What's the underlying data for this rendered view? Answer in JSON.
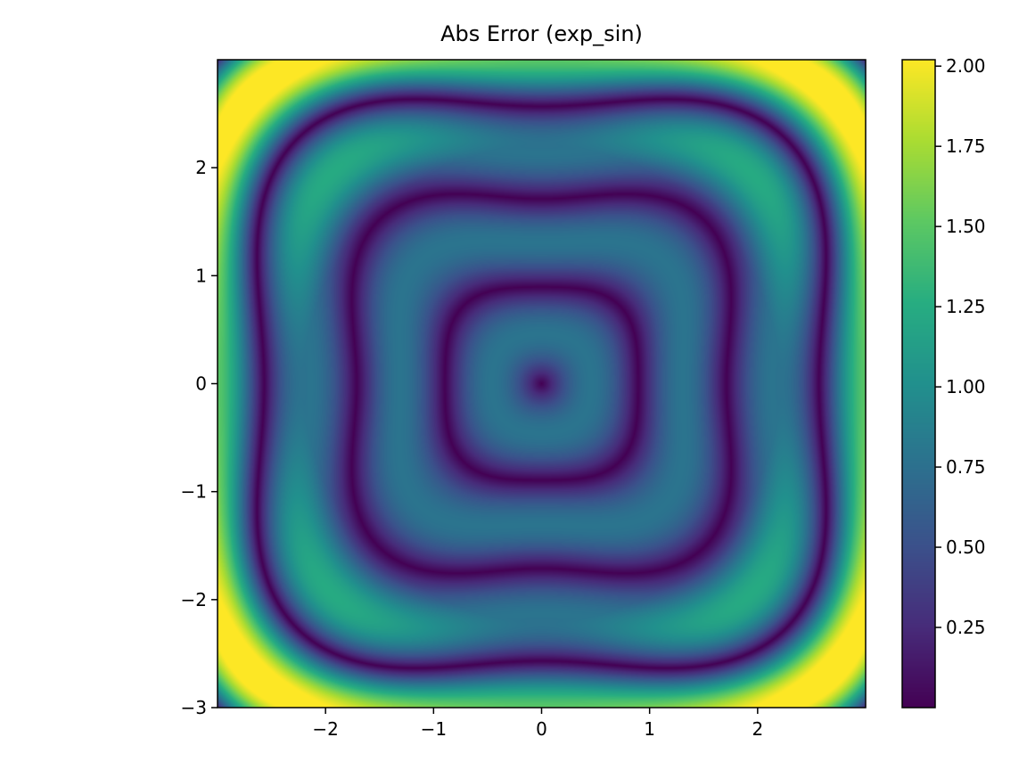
{
  "chart_data": {
    "type": "heatmap",
    "title": "Abs Error (exp_sin)",
    "xlabel": "",
    "ylabel": "",
    "xlim": [
      -3,
      3
    ],
    "ylim": [
      -3,
      3
    ],
    "x_ticks": [
      -2,
      -1,
      0,
      1,
      2
    ],
    "x_tick_labels": [
      "−2",
      "−1",
      "0",
      "1",
      "2"
    ],
    "y_ticks": [
      -3,
      -2,
      -1,
      0,
      1,
      2
    ],
    "y_tick_labels": [
      "−3",
      "−2",
      "−1",
      "0",
      "1",
      "2"
    ],
    "colormap": "viridis",
    "colorbar": {
      "range": [
        0.0,
        2.02
      ],
      "ticks": [
        0.25,
        0.5,
        0.75,
        1.0,
        1.25,
        1.5,
        1.75,
        2.0
      ],
      "tick_labels": [
        "0.25",
        "0.50",
        "0.75",
        "1.00",
        "1.25",
        "1.50",
        "1.75",
        "2.00"
      ]
    },
    "grid": false
  }
}
